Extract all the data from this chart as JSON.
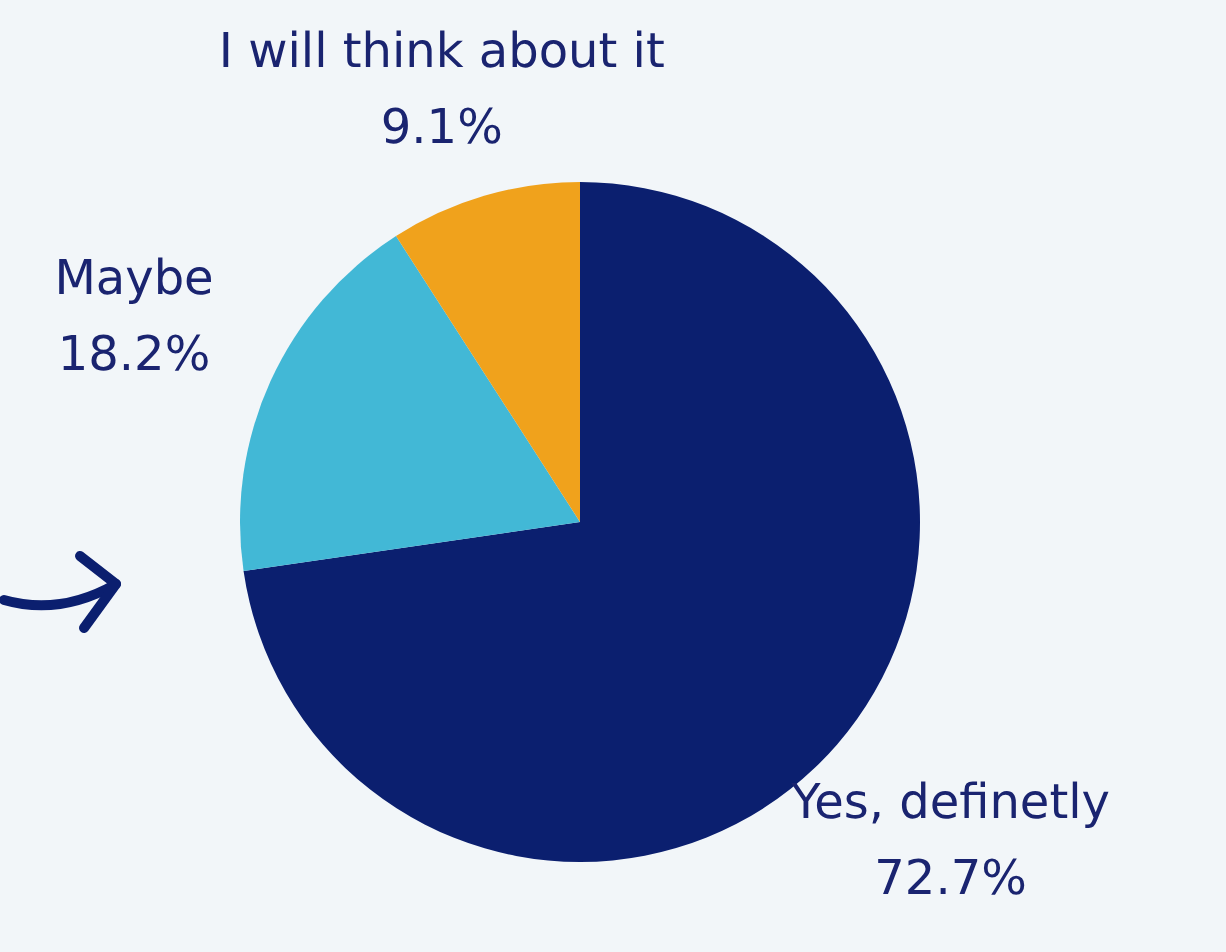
{
  "chart_data": {
    "type": "pie",
    "categories": [
      "Yes, definetly",
      "Maybe",
      "I will think about it"
    ],
    "values": [
      72.7,
      18.2,
      9.1
    ],
    "value_labels": [
      "72.7%",
      "18.2%",
      "9.1%"
    ],
    "colors": [
      "#0b1f6f",
      "#42b8d6",
      "#f0a21c"
    ]
  }
}
